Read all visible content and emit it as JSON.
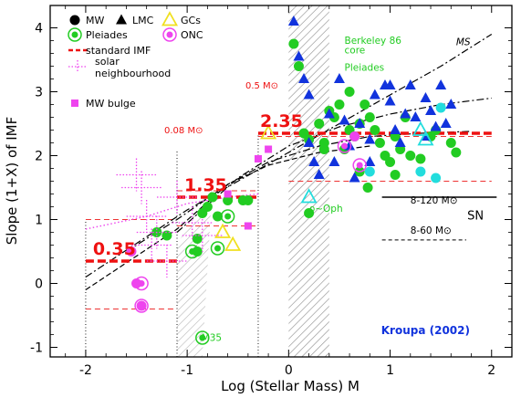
{
  "chart_data": {
    "type": "scatter",
    "title": "",
    "xlabel": "Log (Stellar Mass) M",
    "ylabel": "Slope (1+X) of IMF",
    "xlim": [
      -2.35,
      2.2
    ],
    "ylim": [
      -1.15,
      4.35
    ],
    "x_ticks": [
      -2,
      -1,
      0,
      1,
      2
    ],
    "y_ticks": [
      -1,
      0,
      1,
      2,
      3,
      4
    ],
    "grid": false,
    "credit": "Kroupa (2002)",
    "legend": {
      "placement": "top-left",
      "entries": [
        {
          "marker": "circle",
          "color": "#000000",
          "label": "MW"
        },
        {
          "marker": "triangle",
          "color": "#000000",
          "label": "LMC"
        },
        {
          "marker": "open-triangle",
          "color": "#f0e020",
          "label": "GCs"
        },
        {
          "marker": "ring-circle",
          "color": "#22cc22",
          "label": "Pleiades"
        },
        {
          "marker": "ring-circle",
          "color": "#ee44ee",
          "label": "ONC"
        },
        {
          "marker": "dashed-line",
          "color": "#ee1111",
          "label": "standard IMF"
        },
        {
          "marker": "dotted-errorbar",
          "color": "#ee44ee",
          "label": "solar neighbourhood"
        },
        {
          "marker": "square",
          "color": "#ee44ee",
          "label": "MW bulge"
        }
      ]
    },
    "standard_imf": [
      {
        "label": "0.35",
        "x": [
          -2.0,
          -1.1
        ],
        "y": 0.35
      },
      {
        "label": "1.35",
        "x": [
          -1.1,
          -0.3
        ],
        "y": 1.35
      },
      {
        "label": "2.35",
        "x": [
          -0.3,
          2.0
        ],
        "y": 2.35
      }
    ],
    "thin_dashed": [
      {
        "x": [
          -2.0,
          -1.1
        ],
        "y": -0.4
      },
      {
        "x": [
          -2.0,
          -1.1
        ],
        "y": 1.0
      },
      {
        "x": [
          -1.1,
          -0.3
        ],
        "y": 0.9
      },
      {
        "x": [
          -1.1,
          -0.3
        ],
        "y": 1.45
      },
      {
        "x": [
          -0.3,
          2.0
        ],
        "y": 2.3
      },
      {
        "x": [
          0.0,
          2.0
        ],
        "y": 1.6
      }
    ],
    "vertical_dotted": [
      -2.0,
      -1.1,
      -0.3
    ],
    "hatched_band": [
      0.0,
      0.4
    ],
    "mass_labels": [
      {
        "text": "0.08 M⊙",
        "x": -1.1,
        "y": 2.35
      },
      {
        "text": "0.5 M⊙",
        "x": -0.3,
        "y": 3.05
      }
    ],
    "annotations": [
      {
        "text": "Berkeley 86",
        "x": 0.55,
        "y": 3.75,
        "color": "#22cc22"
      },
      {
        "text": "core",
        "x": 0.55,
        "y": 3.6,
        "color": "#22cc22"
      },
      {
        "text": "Pleiades",
        "x": 0.55,
        "y": 3.33,
        "color": "#22cc22"
      },
      {
        "text": "ρ~Oph",
        "x": 0.2,
        "y": 1.12,
        "color": "#22cc22"
      },
      {
        "text": "M35",
        "x": -0.86,
        "y": -0.9,
        "color": "#22cc22"
      },
      {
        "text": "MS",
        "x": 1.65,
        "y": 3.73,
        "color": "#000000"
      },
      {
        "text": "8-120 M⊙",
        "x": 1.2,
        "y": 1.25,
        "color": "#000000"
      },
      {
        "text": "8-60 M⊙",
        "x": 1.2,
        "y": 0.78,
        "color": "#000000"
      },
      {
        "text": "SN",
        "x": 1.76,
        "y": 1.0,
        "color": "#000000"
      }
    ],
    "curves": [
      {
        "name": "MS",
        "style": "dash-dot",
        "x": [
          -2.0,
          -1.0,
          -0.5,
          0.0,
          0.5,
          1.0,
          1.5,
          2.0
        ],
        "y": [
          0.1,
          1.15,
          1.6,
          2.05,
          2.5,
          2.95,
          3.4,
          3.9
        ]
      },
      {
        "name": "",
        "style": "dash-dot",
        "x": [
          -1.1,
          -0.5,
          0.0,
          0.5,
          1.0,
          1.5,
          2.0
        ],
        "y": [
          0.8,
          1.65,
          2.15,
          2.45,
          2.65,
          2.8,
          2.9
        ]
      },
      {
        "name": "",
        "style": "dash-dot",
        "x": [
          -1.6,
          -1.1,
          -0.6,
          -0.2,
          0.3,
          0.8,
          1.3,
          1.8
        ],
        "y": [
          0.5,
          1.0,
          1.55,
          1.9,
          2.15,
          2.3,
          2.35,
          2.38
        ]
      },
      {
        "name": "",
        "style": "dashed",
        "x": [
          -2.0,
          -1.1,
          -0.6,
          -0.2,
          0.3,
          0.8
        ],
        "y": [
          -0.1,
          0.85,
          1.55,
          1.85,
          2.05,
          2.15
        ]
      },
      {
        "name": "",
        "style": "dotted",
        "x": [
          -2.0,
          -1.4,
          -1.0,
          -0.6,
          -0.3
        ],
        "y": [
          0.85,
          1.05,
          1.25,
          1.35,
          1.4
        ]
      }
    ],
    "series": [
      {
        "group": "MW",
        "marker": "circle",
        "color": "#22cc22",
        "points": [
          [
            0.05,
            3.75
          ],
          [
            0.1,
            3.4
          ],
          [
            0.3,
            2.5
          ],
          [
            0.35,
            2.2
          ],
          [
            0.4,
            2.7
          ],
          [
            0.45,
            2.6
          ],
          [
            0.5,
            2.8
          ],
          [
            0.55,
            2.1
          ],
          [
            0.6,
            2.4
          ],
          [
            0.6,
            3.0
          ],
          [
            0.65,
            2.3
          ],
          [
            0.7,
            2.5
          ],
          [
            0.75,
            2.8
          ],
          [
            0.8,
            2.6
          ],
          [
            0.85,
            2.4
          ],
          [
            0.9,
            2.2
          ],
          [
            0.95,
            2.0
          ],
          [
            1.0,
            1.9
          ],
          [
            1.05,
            2.3
          ],
          [
            1.1,
            2.1
          ],
          [
            1.15,
            2.6
          ],
          [
            1.2,
            2.0
          ],
          [
            1.3,
            1.95
          ],
          [
            1.45,
            2.4
          ],
          [
            1.6,
            2.2
          ],
          [
            1.65,
            2.05
          ],
          [
            0.15,
            2.35
          ],
          [
            0.2,
            1.1
          ],
          [
            -1.3,
            0.8
          ],
          [
            -1.2,
            0.75
          ],
          [
            -0.9,
            0.7
          ],
          [
            -0.8,
            1.2
          ],
          [
            -0.75,
            1.35
          ],
          [
            -0.7,
            1.05
          ],
          [
            -0.6,
            1.3
          ],
          [
            -0.45,
            1.3
          ],
          [
            -0.4,
            1.3
          ],
          [
            -0.9,
            0.5
          ],
          [
            -0.85,
            1.1
          ],
          [
            0.2,
            2.25
          ],
          [
            0.35,
            2.1
          ],
          [
            0.7,
            1.75
          ],
          [
            0.78,
            1.5
          ],
          [
            1.05,
            1.7
          ],
          [
            1.4,
            2.3
          ]
        ]
      },
      {
        "group": "MW",
        "marker": "circle",
        "color": "#22dddd",
        "points": [
          [
            0.8,
            1.75
          ],
          [
            1.3,
            1.75
          ],
          [
            1.45,
            1.65
          ],
          [
            1.5,
            2.75
          ]
        ]
      },
      {
        "group": "MW",
        "marker": "circle",
        "color": "#ee44ee",
        "points": [
          [
            0.65,
            2.3
          ],
          [
            -1.55,
            0.5
          ],
          [
            -1.5,
            0.0
          ],
          [
            -1.45,
            -0.35
          ]
        ]
      },
      {
        "group": "LMC",
        "marker": "triangle",
        "color": "#1133dd",
        "points": [
          [
            0.05,
            4.1
          ],
          [
            0.1,
            3.55
          ],
          [
            0.15,
            3.2
          ],
          [
            0.2,
            2.95
          ],
          [
            0.2,
            2.2
          ],
          [
            0.25,
            1.9
          ],
          [
            0.3,
            1.7
          ],
          [
            0.4,
            2.65
          ],
          [
            0.5,
            3.2
          ],
          [
            0.55,
            2.55
          ],
          [
            0.6,
            2.15
          ],
          [
            0.65,
            1.65
          ],
          [
            0.7,
            2.5
          ],
          [
            0.8,
            2.25
          ],
          [
            0.8,
            1.9
          ],
          [
            0.85,
            2.95
          ],
          [
            0.95,
            3.1
          ],
          [
            1.0,
            2.85
          ],
          [
            1.05,
            2.4
          ],
          [
            1.1,
            2.2
          ],
          [
            1.2,
            3.1
          ],
          [
            1.25,
            2.6
          ],
          [
            1.35,
            2.9
          ],
          [
            1.4,
            2.7
          ],
          [
            1.5,
            3.1
          ],
          [
            1.55,
            2.5
          ],
          [
            1.6,
            2.8
          ],
          [
            1.35,
            2.3
          ],
          [
            1.45,
            2.45
          ],
          [
            0.45,
            1.9
          ],
          [
            1.0,
            3.1
          ],
          [
            1.15,
            2.65
          ]
        ]
      },
      {
        "group": "GCs",
        "marker": "open-triangle",
        "color": "#f0e020",
        "points": [
          [
            -0.2,
            2.35
          ],
          [
            -0.65,
            0.8
          ],
          [
            -0.55,
            0.6
          ]
        ]
      },
      {
        "group": "Pleiades",
        "marker": "ring-circle",
        "color": "#22cc22",
        "points": [
          [
            -0.95,
            0.5
          ],
          [
            -0.7,
            0.55
          ],
          [
            -0.6,
            1.05
          ],
          [
            -0.85,
            -0.85
          ]
        ]
      },
      {
        "group": "ONC",
        "marker": "ring-circle",
        "color": "#ee44ee",
        "points": [
          [
            -1.45,
            0.0
          ],
          [
            -1.45,
            -0.35
          ],
          [
            0.7,
            1.85
          ],
          [
            0.55,
            2.15
          ]
        ]
      },
      {
        "group": "open",
        "marker": "open-triangle",
        "color": "#22dddd",
        "points": [
          [
            0.2,
            1.35
          ],
          [
            1.3,
            2.4
          ],
          [
            1.35,
            2.25
          ]
        ]
      },
      {
        "group": "MW bulge",
        "marker": "square",
        "color": "#ee44ee",
        "points": [
          [
            -0.3,
            1.95
          ],
          [
            -0.2,
            2.1
          ],
          [
            -0.4,
            0.9
          ],
          [
            -0.6,
            1.4
          ]
        ]
      },
      {
        "group": "solar neighbourhood",
        "marker": "dotted-errorbar",
        "color": "#ee44ee",
        "points": [
          [
            -1.5,
            1.7
          ],
          [
            -1.45,
            1.5
          ],
          [
            -1.4,
            1.05
          ],
          [
            -1.3,
            0.8
          ],
          [
            -1.35,
            0.6
          ],
          [
            -1.2,
            0.35
          ],
          [
            -1.1,
            1.35
          ],
          [
            -0.95,
            0.95
          ],
          [
            -0.85,
            0.75
          ]
        ]
      }
    ]
  }
}
